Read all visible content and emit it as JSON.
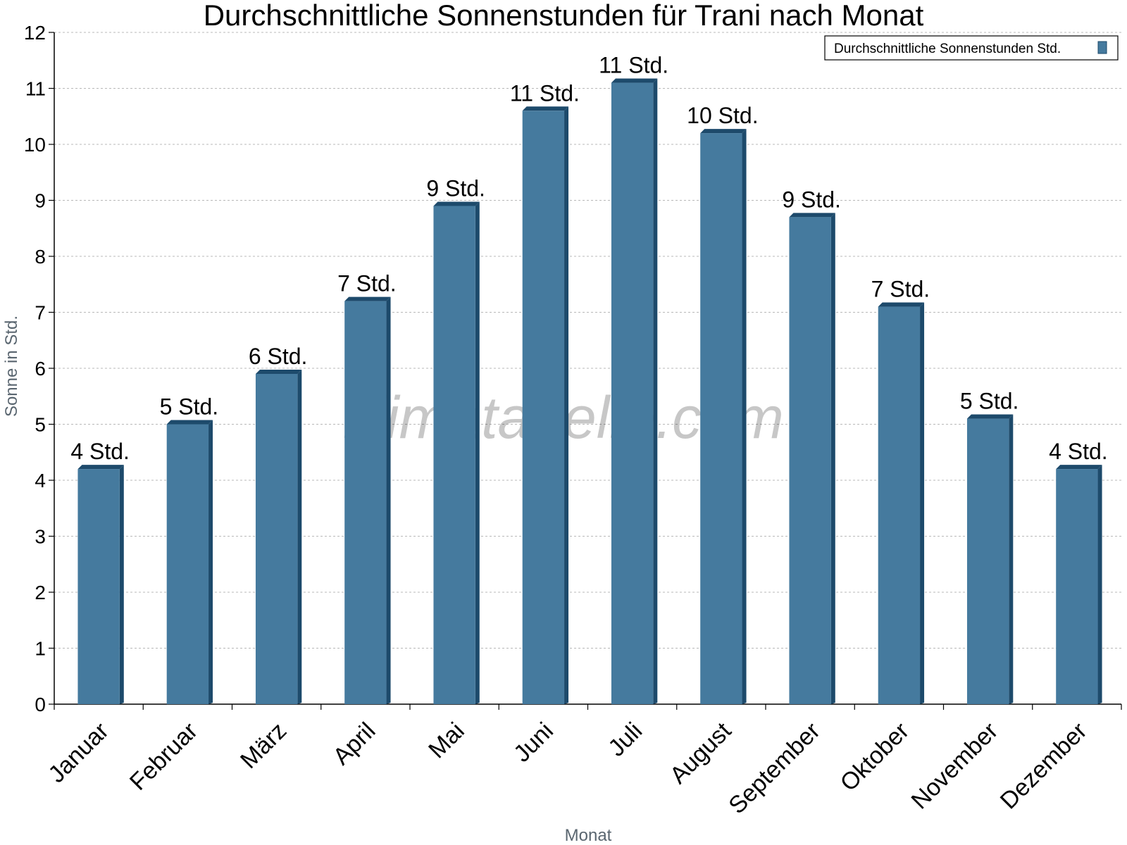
{
  "chart_data": {
    "type": "bar",
    "title": "Durchschnittliche Sonnenstunden für Trani nach Monat",
    "xlabel": "Monat",
    "ylabel": "Sonne in Std.",
    "ylim": [
      0,
      12
    ],
    "yticks": [
      0,
      1,
      2,
      3,
      4,
      5,
      6,
      7,
      8,
      9,
      10,
      11,
      12
    ],
    "grid": true,
    "legend_position": "top-right",
    "categories": [
      "Januar",
      "Februar",
      "März",
      "April",
      "Mai",
      "Juni",
      "Juli",
      "August",
      "September",
      "Oktober",
      "November",
      "Dezember"
    ],
    "series": [
      {
        "name": "Durchschnittliche Sonnenstunden Std.",
        "values": [
          4.2,
          5.0,
          5.9,
          7.2,
          8.9,
          10.6,
          11.1,
          10.2,
          8.7,
          7.1,
          5.1,
          4.2
        ],
        "data_labels": [
          "4 Std.",
          "5 Std.",
          "6 Std.",
          "7 Std.",
          "9 Std.",
          "11 Std.",
          "11 Std.",
          "10 Std.",
          "9 Std.",
          "7 Std.",
          "5 Std.",
          "4 Std."
        ],
        "color": "#457a9e",
        "color_dark": "#1d4a6b"
      }
    ],
    "watermark": "klimatabelle.com"
  }
}
